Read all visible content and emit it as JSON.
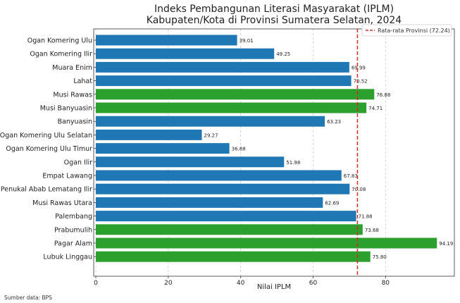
{
  "chart_data": {
    "type": "bar",
    "orientation": "horizontal",
    "title": "Indeks Pembangunan Literasi Masyarakat (IPLM)",
    "subtitle": "Kabupaten/Kota di Provinsi Sumatera Selatan, 2024",
    "xlabel": "Nilai IPLM",
    "ylabel": "",
    "xlim": [
      0,
      99
    ],
    "xticks": [
      0,
      20,
      40,
      60,
      80
    ],
    "grid": "x dashed",
    "legend_placement": "top-right",
    "reference_line": {
      "label": "Rata-rata Provinsi (72.24)",
      "value": 72.24,
      "color": "#d62728"
    },
    "colors": {
      "below": "#1f77b4",
      "above": "#2ca02c"
    },
    "categories": [
      "Ogan Komering Ulu",
      "Ogan Komering Ilir",
      "Muara Enim",
      "Lahat",
      "Musi Rawas",
      "Musi Banyuasin",
      "Banyuasin",
      "Ogan Komering Ulu Selatan",
      "Ogan Komering Ulu Timur",
      "Ogan Ilir",
      "Empat Lawang",
      "Penukal Abab Lematang Ilir",
      "Musi Rawas Utara",
      "Palembang",
      "Prabumulih",
      "Pagar Alam",
      "Lubuk Linggau"
    ],
    "values": [
      39.01,
      49.25,
      69.99,
      70.52,
      76.88,
      74.71,
      63.23,
      29.27,
      36.88,
      51.98,
      67.83,
      70.08,
      62.69,
      71.88,
      73.68,
      94.19,
      75.8
    ],
    "value_labels": [
      "39.01",
      "49.25",
      "69.99",
      "70.52",
      "76.88",
      "74.71",
      "63.23",
      "29.27",
      "36.88",
      "51.98",
      "67.83",
      "70.08",
      "62.69",
      "71.88",
      "73.68",
      "94.19",
      "75.80"
    ]
  },
  "source_note": "Sumber data: BPS"
}
